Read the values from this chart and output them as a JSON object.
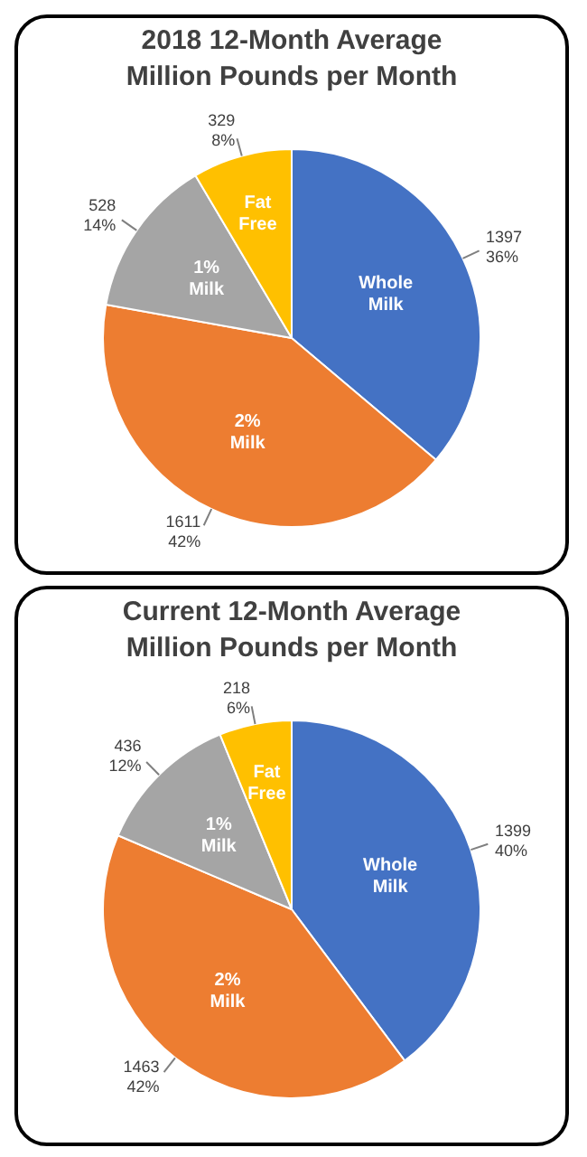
{
  "chart_data": [
    {
      "type": "pie",
      "title": "2018 12-Month Average",
      "subtitle": "Million Pounds per Month",
      "categories": [
        "Whole Milk",
        "2% Milk",
        "1% Milk",
        "Fat Free"
      ],
      "values": [
        1397,
        1611,
        528,
        329
      ],
      "colors": [
        "#4472c4",
        "#ed7d31",
        "#a5a5a5",
        "#ffc000"
      ],
      "value_labels": [
        "1397\n36%",
        "1611\n42%",
        "528\n14%",
        "329\n8%"
      ]
    },
    {
      "type": "pie",
      "title": "Current 12-Month Average",
      "subtitle": "Million Pounds per Month",
      "categories": [
        "Whole Milk",
        "2% Milk",
        "1% Milk",
        "Fat Free"
      ],
      "values": [
        1399,
        1463,
        436,
        218
      ],
      "colors": [
        "#4472c4",
        "#ed7d31",
        "#a5a5a5",
        "#ffc000"
      ],
      "value_labels": [
        "1399\n40%",
        "1463\n42%",
        "436\n12%",
        "218\n6%"
      ]
    }
  ]
}
